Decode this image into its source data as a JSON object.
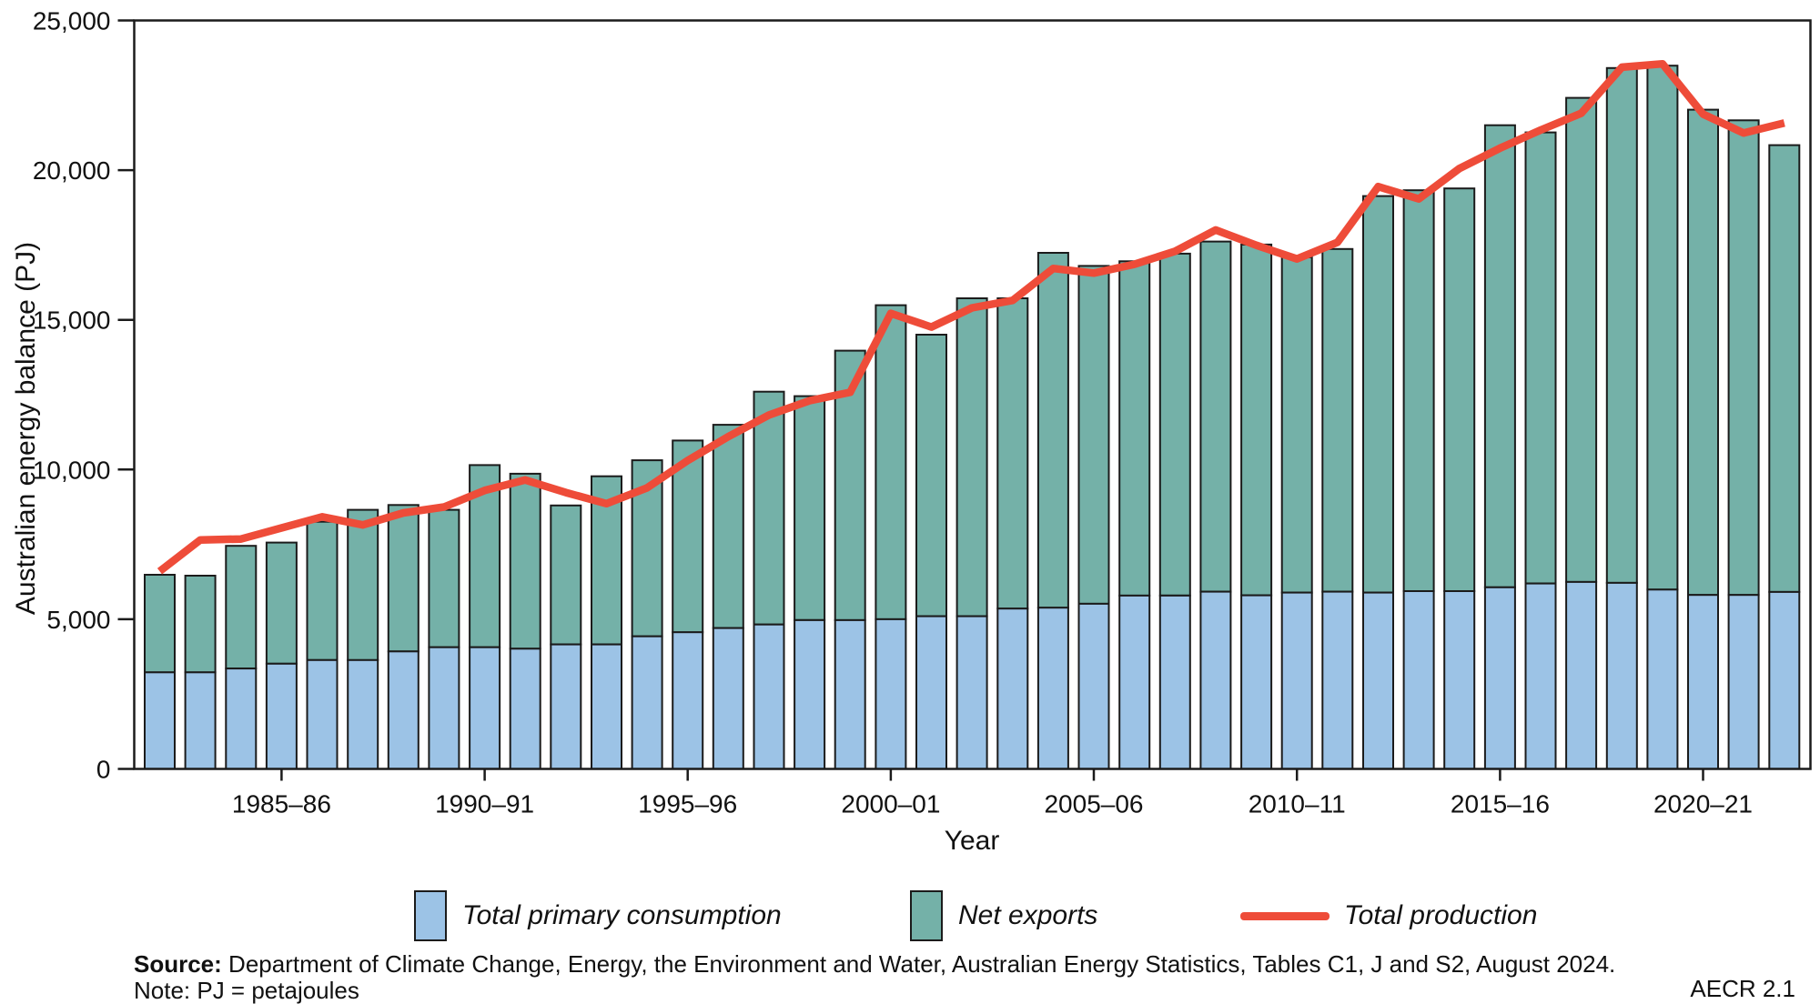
{
  "axes": {
    "y_title": "Australian energy balance (PJ)",
    "x_title": "Year"
  },
  "chart_data": {
    "type": "bar",
    "variant": "stacked-bars-with-line-overlay",
    "title": "",
    "xlabel": "Year",
    "ylabel": "Australian energy balance (PJ)",
    "ylim": [
      0,
      25000
    ],
    "grid": false,
    "legend_position": "bottom",
    "categories": [
      "1982–83",
      "1983–84",
      "1984–85",
      "1985–86",
      "1986–87",
      "1987–88",
      "1988–89",
      "1989–90",
      "1990–91",
      "1991–92",
      "1992–93",
      "1993–94",
      "1994–95",
      "1995–96",
      "1996–97",
      "1997–98",
      "1998–99",
      "1999–00",
      "2000–01",
      "2001–02",
      "2002–03",
      "2003–04",
      "2004–05",
      "2005–06",
      "2006–07",
      "2007–08",
      "2008–09",
      "2009–10",
      "2010–11",
      "2011–12",
      "2012–13",
      "2013–14",
      "2014–15",
      "2015–16",
      "2016–17",
      "2017–18",
      "2018–19",
      "2019–20",
      "2020–21",
      "2021–22",
      "2022–23"
    ],
    "series": [
      {
        "name": "Total primary consumption",
        "color": "#9CC3E6",
        "values": [
          3225,
          3225,
          3355,
          3515,
          3635,
          3635,
          3925,
          4065,
          4065,
          4015,
          4160,
          4160,
          4430,
          4565,
          4705,
          4825,
          4970,
          4970,
          5000,
          5100,
          5100,
          5355,
          5385,
          5515,
          5790,
          5790,
          5920,
          5800,
          5890,
          5920,
          5890,
          5940,
          5940,
          6065,
          6195,
          6245,
          6215,
          5990,
          5810,
          5810,
          5910
        ]
      },
      {
        "name": "Net exports",
        "color": "#74B1A8",
        "values": [
          3260,
          3230,
          4095,
          4045,
          4620,
          5020,
          4890,
          4590,
          6085,
          5845,
          4640,
          5615,
          5880,
          6405,
          6790,
          7775,
          7480,
          9000,
          10490,
          9405,
          10620,
          10365,
          11855,
          11285,
          11165,
          11420,
          11695,
          11715,
          11200,
          11445,
          13245,
          13390,
          13450,
          15435,
          15065,
          16170,
          17195,
          17500,
          16210,
          15855,
          14925
        ]
      }
    ],
    "line_series": {
      "name": "Total production",
      "color": "#EE4C39",
      "values": [
        6600,
        7650,
        7680,
        8050,
        8420,
        8150,
        8550,
        8750,
        9300,
        9650,
        9230,
        8860,
        9390,
        10300,
        11100,
        11820,
        12300,
        12580,
        15215,
        14760,
        15400,
        15650,
        16715,
        16560,
        16855,
        17290,
        18000,
        17490,
        17035,
        17590,
        19450,
        19040,
        20055,
        20735,
        21340,
        21900,
        23440,
        23550,
        21870,
        21240,
        21575
      ]
    },
    "y_ticks": [
      {
        "v": 0,
        "label": "0"
      },
      {
        "v": 5000,
        "label": "5,000"
      },
      {
        "v": 10000,
        "label": "10,000"
      },
      {
        "v": 15000,
        "label": "15,000"
      },
      {
        "v": 20000,
        "label": "20,000"
      },
      {
        "v": 25000,
        "label": "25,000"
      }
    ],
    "x_ticks": [
      {
        "bar": 3,
        "label": "1985–86"
      },
      {
        "bar": 8,
        "label": "1990–91"
      },
      {
        "bar": 13,
        "label": "1995–96"
      },
      {
        "bar": 18,
        "label": "2000–01"
      },
      {
        "bar": 23,
        "label": "2005–06"
      },
      {
        "bar": 28,
        "label": "2010–11"
      },
      {
        "bar": 33,
        "label": "2015–16"
      },
      {
        "bar": 38,
        "label": "2020–21"
      }
    ]
  },
  "legend": {
    "consumption_label": "Total primary consumption",
    "net_exports_label": "Net exports",
    "production_label": "Total production"
  },
  "source": {
    "label": "Source:",
    "text": " Department of Climate Change, Energy, the Environment and Water, Australian Energy Statistics, Tables C1, J and S2, August 2024.",
    "note": "Note: PJ = petajoules"
  },
  "footer_right": "AECR 2.1",
  "colors": {
    "consumption": "#9CC3E6",
    "net_exports": "#74B1A8",
    "production_line": "#EE4C39",
    "axis": "#1b1b1b",
    "background": "#ffffff"
  }
}
